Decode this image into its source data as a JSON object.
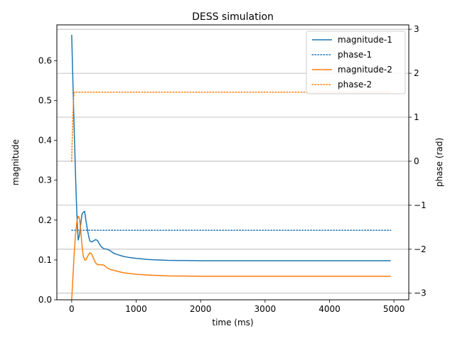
{
  "chart_data": {
    "type": "line",
    "title": "DESS simulation",
    "xlabel": "time (ms)",
    "ylabel": "magnitude",
    "ylabel_right": "phase (rad)",
    "xlim": [
      -230,
      5230
    ],
    "ylim": [
      0,
      0.69
    ],
    "ylim_right": [
      -3.15,
      3.1
    ],
    "xticks": [
      0,
      1000,
      2000,
      3000,
      4000,
      5000
    ],
    "xtick_labels": [
      "0",
      "1000",
      "2000",
      "3000",
      "4000",
      "5000"
    ],
    "yticks": [
      0.0,
      0.1,
      0.2,
      0.3,
      0.4,
      0.5,
      0.6
    ],
    "ytick_labels": [
      "0.0",
      "0.1",
      "0.2",
      "0.3",
      "0.4",
      "0.5",
      "0.6"
    ],
    "yticks_right": [
      -3,
      -2,
      -1,
      0,
      1,
      2,
      3
    ],
    "ytick_labels_right": [
      "−3",
      "−2",
      "−1",
      "0",
      "1",
      "2",
      "3"
    ],
    "grid": "horizontal lines at right-axis ticks",
    "legend_position": "top-right",
    "series": [
      {
        "name": "magnitude-1",
        "axis": "left",
        "color": "#1f77b4",
        "style": "solid",
        "x": [
          0,
          20,
          40,
          60,
          80,
          100,
          120,
          140,
          160,
          180,
          200,
          220,
          250,
          280,
          310,
          340,
          370,
          400,
          430,
          460,
          500,
          550,
          600,
          650,
          700,
          800,
          900,
          1000,
          1200,
          1500,
          2000,
          2500,
          3000,
          4000,
          4950
        ],
        "y": [
          0.665,
          0.54,
          0.42,
          0.31,
          0.215,
          0.15,
          0.162,
          0.19,
          0.215,
          0.22,
          0.222,
          0.2,
          0.17,
          0.148,
          0.145,
          0.148,
          0.151,
          0.149,
          0.14,
          0.133,
          0.128,
          0.127,
          0.123,
          0.117,
          0.114,
          0.109,
          0.106,
          0.104,
          0.101,
          0.099,
          0.098,
          0.098,
          0.098,
          0.098,
          0.098
        ]
      },
      {
        "name": "phase-1",
        "axis": "right",
        "color": "#1f77b4",
        "style": "dotted",
        "x": [
          0,
          4950
        ],
        "y": [
          -1.57,
          -1.57
        ]
      },
      {
        "name": "magnitude-2",
        "axis": "left",
        "color": "#ff7f0e",
        "style": "solid",
        "x": [
          0,
          20,
          40,
          60,
          80,
          100,
          120,
          140,
          160,
          180,
          200,
          220,
          250,
          280,
          310,
          340,
          370,
          400,
          430,
          460,
          500,
          550,
          600,
          650,
          700,
          800,
          900,
          1000,
          1200,
          1500,
          2000,
          2500,
          3000,
          4000,
          4950
        ],
        "y": [
          0.0,
          0.06,
          0.12,
          0.165,
          0.195,
          0.21,
          0.205,
          0.175,
          0.135,
          0.11,
          0.1,
          0.1,
          0.11,
          0.118,
          0.115,
          0.103,
          0.093,
          0.088,
          0.088,
          0.088,
          0.087,
          0.08,
          0.076,
          0.074,
          0.072,
          0.068,
          0.066,
          0.064,
          0.062,
          0.06,
          0.059,
          0.059,
          0.059,
          0.059,
          0.059
        ]
      },
      {
        "name": "phase-2",
        "axis": "right",
        "color": "#ff7f0e",
        "style": "dotted",
        "x": [
          0,
          0,
          15,
          30,
          40,
          4950
        ],
        "y": [
          0.0,
          0.0,
          0.9,
          1.45,
          1.57,
          1.57
        ]
      }
    ]
  }
}
